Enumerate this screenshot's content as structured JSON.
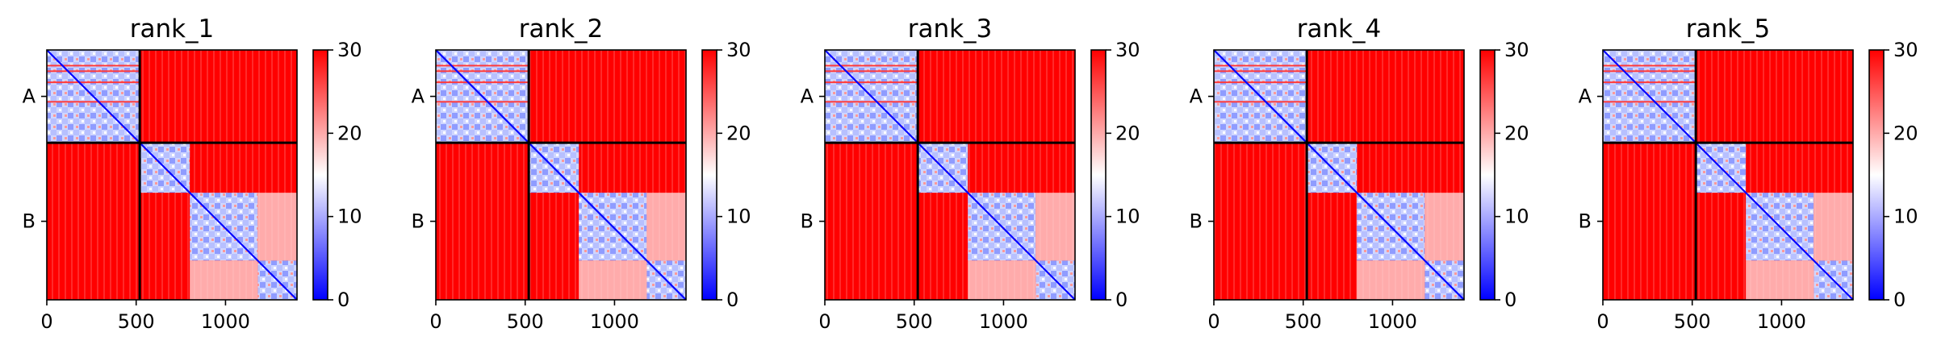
{
  "chart_data": {
    "type": "heatmap",
    "description_free": true,
    "colormap": {
      "name": "bwr",
      "low": "#0000ff",
      "mid": "#ffffff",
      "high": "#ff0000"
    },
    "colorbar": {
      "range": [
        0,
        30
      ],
      "ticks": [
        "0",
        "10",
        "20",
        "30"
      ]
    },
    "xlim": [
      0,
      1400
    ],
    "x_ticks": [
      0,
      500,
      1000
    ],
    "x_tick_labels": [
      "0",
      "500",
      "1000"
    ],
    "chain_boundary": 520,
    "y_tick_labels": [
      "A",
      "B"
    ],
    "panels": [
      {
        "title": "rank_1"
      },
      {
        "title": "rank_2"
      },
      {
        "title": "rank_3"
      },
      {
        "title": "rank_4"
      },
      {
        "title": "rank_5"
      }
    ]
  }
}
